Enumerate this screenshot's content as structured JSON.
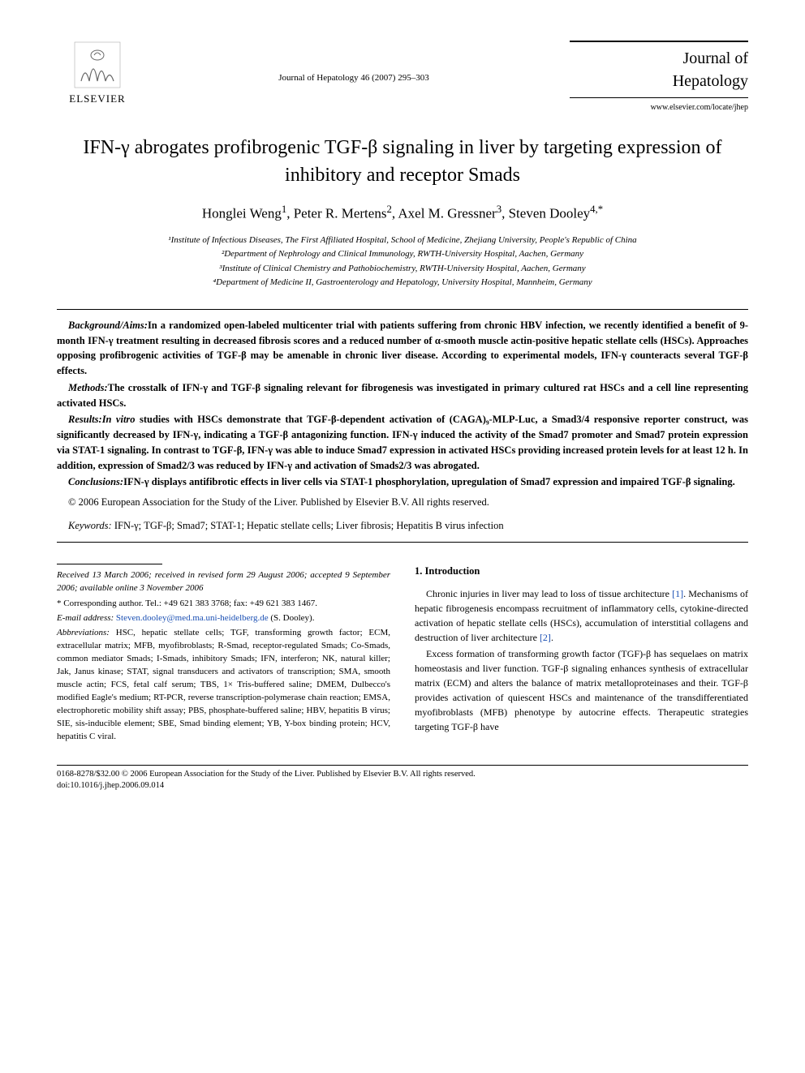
{
  "header": {
    "publisher_name": "ELSEVIER",
    "citation": "Journal of Hepatology 46 (2007) 295–303",
    "journal_title_line1": "Journal of",
    "journal_title_line2": "Hepatology",
    "journal_url": "www.elsevier.com/locate/jhep"
  },
  "article": {
    "title": "IFN-γ abrogates profibrogenic TGF-β signaling in liver by targeting expression of inhibitory and receptor Smads",
    "authors_html": "Honglei Weng<sup>1</sup>, Peter R. Mertens<sup>2</sup>, Axel M. Gressner<sup>3</sup>, Steven Dooley<sup>4,*</sup>",
    "affiliations": [
      "¹Institute of Infectious Diseases, The First Affiliated Hospital, School of Medicine, Zhejiang University, People's Republic of China",
      "²Department of Nephrology and Clinical Immunology, RWTH-University Hospital, Aachen, Germany",
      "³Institute of Clinical Chemistry and Pathobiochemistry, RWTH-University Hospital, Aachen, Germany",
      "⁴Department of Medicine II, Gastroenterology and Hepatology, University Hospital, Mannheim, Germany"
    ]
  },
  "abstract": {
    "background_label": "Background/Aims:",
    "background": "In a randomized open-labeled multicenter trial with patients suffering from chronic HBV infection, we recently identified a benefit of 9-month IFN-γ treatment resulting in decreased fibrosis scores and a reduced number of α-smooth muscle actin-positive hepatic stellate cells (HSCs). Approaches opposing profibrogenic activities of TGF-β may be amenable in chronic liver disease. According to experimental models, IFN-γ counteracts several TGF-β effects.",
    "methods_label": "Methods:",
    "methods": "The crosstalk of IFN-γ and TGF-β signaling relevant for fibrogenesis was investigated in primary cultured rat HSCs and a cell line representing activated HSCs.",
    "results_label": "Results:",
    "results": "In vitro studies with HSCs demonstrate that TGF-β-dependent activation of (CAGA)₉-MLP-Luc, a Smad3/4 responsive reporter construct, was significantly decreased by IFN-γ, indicating a TGF-β antagonizing function. IFN-γ induced the activity of the Smad7 promoter and Smad7 protein expression via STAT-1 signaling. In contrast to TGF-β, IFN-γ was able to induce Smad7 expression in activated HSCs providing increased protein levels for at least 12 h. In addition, expression of Smad2/3 was reduced by IFN-γ and activation of Smads2/3 was abrogated.",
    "conclusions_label": "Conclusions:",
    "conclusions": "IFN-γ displays antifibrotic effects in liver cells via STAT-1 phosphorylation, upregulation of Smad7 expression and impaired TGF-β signaling.",
    "copyright": "© 2006 European Association for the Study of the Liver. Published by Elsevier B.V. All rights reserved.",
    "keywords_label": "Keywords:",
    "keywords": " IFN-γ; TGF-β; Smad7; STAT-1; Hepatic stellate cells; Liver fibrosis; Hepatitis B virus infection"
  },
  "footnotes": {
    "received": "Received 13 March 2006; received in revised form 29 August 2006; accepted 9 September 2006; available online 3 November 2006",
    "corresponding": "* Corresponding author. Tel.: +49 621 383 3768; fax: +49 621 383 1467.",
    "email_label": "E-mail address:",
    "email": "Steven.dooley@med.ma.uni-heidelberg.de",
    "email_suffix": " (S. Dooley).",
    "abbrev_label": "Abbreviations:",
    "abbrev": " HSC, hepatic stellate cells; TGF, transforming growth factor; ECM, extracellular matrix; MFB, myofibroblasts; R-Smad, receptor-regulated Smads; Co-Smads, common mediator Smads; I-Smads, inhibitory Smads; IFN, interferon; NK, natural killer; Jak, Janus kinase; STAT, signal transducers and activators of transcription; SMA, smooth muscle actin; FCS, fetal calf serum; TBS, 1× Tris-buffered saline; DMEM, Dulbecco's modified Eagle's medium; RT-PCR, reverse transcription-polymerase chain reaction; EMSA, electrophoretic mobility shift assay; PBS, phosphate-buffered saline; HBV, hepatitis B virus; SIE, sis-inducible element; SBE, Smad binding element; YB, Y-box binding protein; HCV, hepatitis C viral."
  },
  "body": {
    "section_heading": "1. Introduction",
    "para1_pre": "Chronic injuries in liver may lead to loss of tissue architecture ",
    "ref1": "[1]",
    "para1_post": ". Mechanisms of hepatic fibrogenesis encompass recruitment of inflammatory cells, cytokine-directed activation of hepatic stellate cells (HSCs), accumulation of interstitial collagens and destruction of liver architecture ",
    "ref2": "[2]",
    "para1_end": ".",
    "para2": "Excess formation of transforming growth factor (TGF)-β has sequelaes on matrix homeostasis and liver function. TGF-β signaling enhances synthesis of extracellular matrix (ECM) and alters the balance of matrix metalloproteinases and their. TGF-β provides activation of quiescent HSCs and maintenance of the transdifferentiated myofibroblasts (MFB) phenotype by autocrine effects. Therapeutic strategies targeting TGF-β have"
  },
  "footer": {
    "line1": "0168-8278/$32.00 © 2006 European Association for the Study of the Liver. Published by Elsevier B.V. All rights reserved.",
    "line2": "doi:10.1016/j.jhep.2006.09.014"
  },
  "colors": {
    "text": "#000000",
    "link": "#1a4fb3",
    "logo_orange": "#ff6600",
    "background": "#ffffff"
  }
}
